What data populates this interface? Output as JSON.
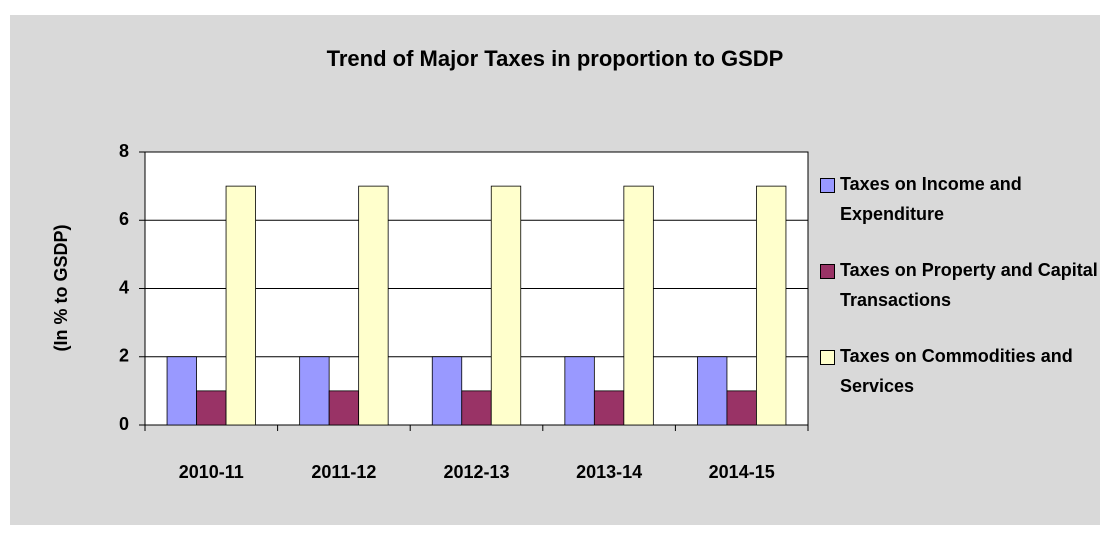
{
  "chart_data": {
    "type": "bar",
    "title": "Trend of Major Taxes in proportion to GSDP",
    "y_label": "(In % to GSDP)",
    "categories": [
      "2010-11",
      "2011-12",
      "2012-13",
      "2013-14",
      "2014-15"
    ],
    "series": [
      {
        "name": "Taxes on Income and Expenditure",
        "color": "#9999ff",
        "values": [
          2,
          2,
          2,
          2,
          2
        ]
      },
      {
        "name": "Taxes on Property and Capital Transactions",
        "color": "#993366",
        "values": [
          1,
          1,
          1,
          1,
          1
        ]
      },
      {
        "name": "Taxes on Commodities and Services",
        "color": "#ffffcc",
        "values": [
          7,
          7,
          7,
          7,
          7
        ]
      }
    ],
    "ylim": [
      0,
      8
    ],
    "yticks": [
      0,
      2,
      4,
      6,
      8
    ],
    "grid": true,
    "legend": "right"
  }
}
